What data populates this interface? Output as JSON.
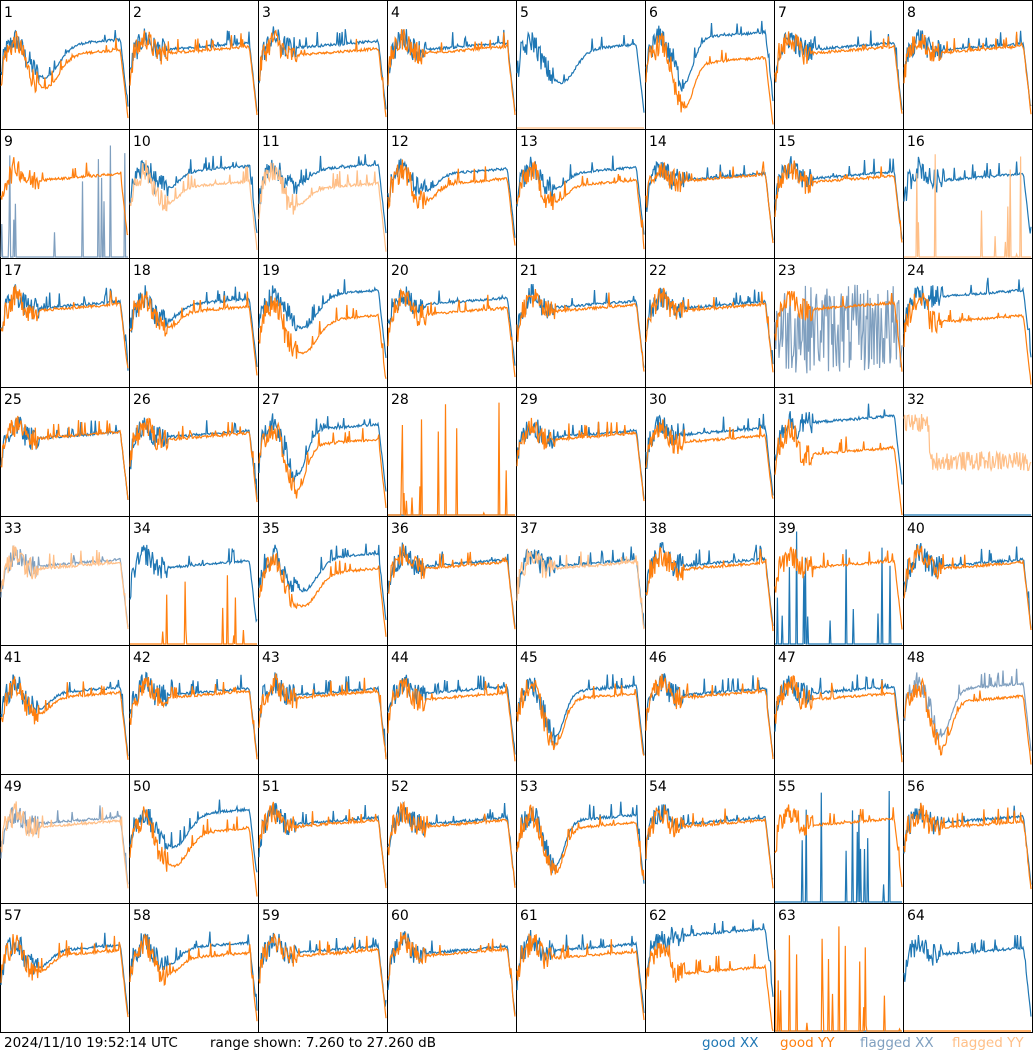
{
  "timestamp": "2024/11/10 19:52:14 UTC",
  "range_text": "range shown: 7.260 to 27.260 dB",
  "legend": [
    {
      "label": "good XX",
      "color": "#1f77b4"
    },
    {
      "label": "good YY",
      "color": "#ff7f0e"
    },
    {
      "label": "flagged XX",
      "color": "#7f9fbf"
    },
    {
      "label": "flagged YY",
      "color": "#ffbf87"
    }
  ],
  "colors": {
    "good_xx": "#1f77b4",
    "good_yy": "#ff7f0e",
    "flagged_xx": "#7f9fbf",
    "flagged_yy": "#ffbf87"
  },
  "chart_data": {
    "type": "line",
    "title": "",
    "y_range_db": [
      7.26,
      27.26
    ],
    "grid": {
      "rows": 8,
      "cols": 8
    },
    "panels": [
      {
        "id": "1",
        "xx": "good",
        "yy": "good",
        "shape": "bowl",
        "gap": 0.08
      },
      {
        "id": "2",
        "xx": "good",
        "yy": "good",
        "shape": "flat",
        "gap": 0.03
      },
      {
        "id": "3",
        "xx": "good",
        "yy": "good",
        "shape": "flat",
        "gap": 0.06
      },
      {
        "id": "4",
        "xx": "good",
        "yy": "good",
        "shape": "flat",
        "gap": 0.03
      },
      {
        "id": "5",
        "xx": "good",
        "yy": "flagged",
        "shape": "bowl",
        "gap": 0.0,
        "yy_mode": "zero"
      },
      {
        "id": "6",
        "xx": "good",
        "yy": "good",
        "shape": "deep",
        "gap": 0.2
      },
      {
        "id": "7",
        "xx": "good",
        "yy": "good",
        "shape": "flat",
        "gap": 0.03
      },
      {
        "id": "8",
        "xx": "good",
        "yy": "good",
        "shape": "flat",
        "gap": 0.02
      },
      {
        "id": "9",
        "xx": "flagged",
        "yy": "good",
        "shape": "flat",
        "xx_mode": "spikes"
      },
      {
        "id": "10",
        "xx": "good",
        "yy": "flagged",
        "shape": "dip",
        "gap": 0.12
      },
      {
        "id": "11",
        "xx": "good",
        "yy": "flagged",
        "shape": "dip",
        "gap": 0.15
      },
      {
        "id": "12",
        "xx": "good",
        "yy": "good",
        "shape": "dip",
        "gap": 0.08
      },
      {
        "id": "13",
        "xx": "good",
        "yy": "good",
        "shape": "dip",
        "gap": 0.1
      },
      {
        "id": "14",
        "xx": "good",
        "yy": "good",
        "shape": "flat",
        "gap": 0.01
      },
      {
        "id": "15",
        "xx": "good",
        "yy": "good",
        "shape": "flat",
        "gap": 0.03
      },
      {
        "id": "16",
        "xx": "good",
        "yy": "flagged",
        "shape": "flat",
        "yy_mode": "spikes"
      },
      {
        "id": "17",
        "xx": "good",
        "yy": "good",
        "shape": "flat",
        "gap": 0.02
      },
      {
        "id": "18",
        "xx": "good",
        "yy": "good",
        "shape": "dip",
        "gap": 0.06
      },
      {
        "id": "19",
        "xx": "good",
        "yy": "good",
        "shape": "bowl",
        "gap": 0.2
      },
      {
        "id": "20",
        "xx": "good",
        "yy": "good",
        "shape": "flat",
        "gap": 0.08
      },
      {
        "id": "21",
        "xx": "good",
        "yy": "good",
        "shape": "flat",
        "gap": 0.03
      },
      {
        "id": "22",
        "xx": "good",
        "yy": "good",
        "shape": "flat",
        "gap": 0.02
      },
      {
        "id": "23",
        "xx": "flagged",
        "yy": "good",
        "shape": "flat",
        "xx_mode": "noise"
      },
      {
        "id": "24",
        "xx": "good",
        "yy": "good",
        "shape": "flat",
        "gap": 0.2
      },
      {
        "id": "25",
        "xx": "good",
        "yy": "good",
        "shape": "flat",
        "gap": 0.0
      },
      {
        "id": "26",
        "xx": "good",
        "yy": "good",
        "shape": "flat",
        "gap": 0.02
      },
      {
        "id": "27",
        "xx": "good",
        "yy": "good",
        "shape": "deep",
        "gap": 0.12
      },
      {
        "id": "28",
        "xx": "good",
        "yy": "good",
        "shape": "flat",
        "xx_mode": "zero",
        "yy_mode": "spikes"
      },
      {
        "id": "29",
        "xx": "good",
        "yy": "good",
        "shape": "flat",
        "gap": 0.02
      },
      {
        "id": "30",
        "xx": "good",
        "yy": "good",
        "shape": "flat",
        "gap": 0.06
      },
      {
        "id": "31",
        "xx": "good",
        "yy": "good",
        "shape": "flat",
        "gap": 0.25
      },
      {
        "id": "32",
        "xx": "good",
        "yy": "flagged",
        "shape": "flat",
        "xx_mode": "zero",
        "yy_mode": "noisyflat"
      },
      {
        "id": "33",
        "xx": "flagged",
        "yy": "flagged",
        "shape": "flat",
        "gap": 0.02
      },
      {
        "id": "34",
        "xx": "good",
        "yy": "good",
        "shape": "flat",
        "yy_mode": "spikes"
      },
      {
        "id": "35",
        "xx": "good",
        "yy": "good",
        "shape": "bowl",
        "gap": 0.12
      },
      {
        "id": "36",
        "xx": "good",
        "yy": "good",
        "shape": "flat",
        "gap": 0.02
      },
      {
        "id": "37",
        "xx": "good",
        "yy": "flagged",
        "shape": "flat",
        "gap": 0.02
      },
      {
        "id": "38",
        "xx": "good",
        "yy": "good",
        "shape": "flat",
        "gap": 0.03
      },
      {
        "id": "39",
        "xx": "good",
        "yy": "good",
        "shape": "flat",
        "xx_mode": "spikes"
      },
      {
        "id": "40",
        "xx": "good",
        "yy": "good",
        "shape": "flat",
        "gap": 0.02
      },
      {
        "id": "41",
        "xx": "good",
        "yy": "good",
        "shape": "dip",
        "gap": 0.04
      },
      {
        "id": "42",
        "xx": "good",
        "yy": "good",
        "shape": "flat",
        "gap": 0.02
      },
      {
        "id": "43",
        "xx": "good",
        "yy": "good",
        "shape": "flat",
        "gap": 0.02
      },
      {
        "id": "44",
        "xx": "good",
        "yy": "good",
        "shape": "flat",
        "gap": 0.05
      },
      {
        "id": "45",
        "xx": "good",
        "yy": "good",
        "shape": "deep",
        "gap": 0.06
      },
      {
        "id": "46",
        "xx": "good",
        "yy": "good",
        "shape": "flat",
        "gap": 0.02
      },
      {
        "id": "47",
        "xx": "good",
        "yy": "good",
        "shape": "flat",
        "gap": 0.05
      },
      {
        "id": "48",
        "xx": "flagged",
        "yy": "good",
        "shape": "deep",
        "gap": 0.1
      },
      {
        "id": "49",
        "xx": "flagged",
        "yy": "flagged",
        "shape": "flat",
        "gap": 0.03
      },
      {
        "id": "50",
        "xx": "good",
        "yy": "good",
        "shape": "bowl",
        "gap": 0.15
      },
      {
        "id": "51",
        "xx": "good",
        "yy": "good",
        "shape": "flat",
        "gap": 0.02
      },
      {
        "id": "52",
        "xx": "good",
        "yy": "good",
        "shape": "flat",
        "gap": 0.02
      },
      {
        "id": "53",
        "xx": "good",
        "yy": "good",
        "shape": "deep",
        "gap": 0.06
      },
      {
        "id": "54",
        "xx": "good",
        "yy": "good",
        "shape": "flat",
        "gap": 0.02
      },
      {
        "id": "55",
        "xx": "good",
        "yy": "good",
        "shape": "flat",
        "xx_mode": "spikes"
      },
      {
        "id": "56",
        "xx": "good",
        "yy": "good",
        "shape": "flat",
        "gap": 0.04
      },
      {
        "id": "57",
        "xx": "good",
        "yy": "good",
        "shape": "dip",
        "gap": 0.04
      },
      {
        "id": "58",
        "xx": "good",
        "yy": "good",
        "shape": "dip",
        "gap": 0.08
      },
      {
        "id": "59",
        "xx": "good",
        "yy": "good",
        "shape": "flat",
        "gap": 0.03
      },
      {
        "id": "60",
        "xx": "good",
        "yy": "good",
        "shape": "flat",
        "gap": 0.02
      },
      {
        "id": "61",
        "xx": "good",
        "yy": "good",
        "shape": "flat",
        "gap": 0.06
      },
      {
        "id": "62",
        "xx": "good",
        "yy": "good",
        "shape": "flat",
        "gap": 0.3
      },
      {
        "id": "63",
        "xx": "good",
        "yy": "good",
        "shape": "flat",
        "xx_mode": "zero",
        "yy_mode": "spikes"
      },
      {
        "id": "64",
        "xx": "good",
        "yy": "good",
        "shape": "flat",
        "yy_mode": "zero"
      }
    ]
  }
}
